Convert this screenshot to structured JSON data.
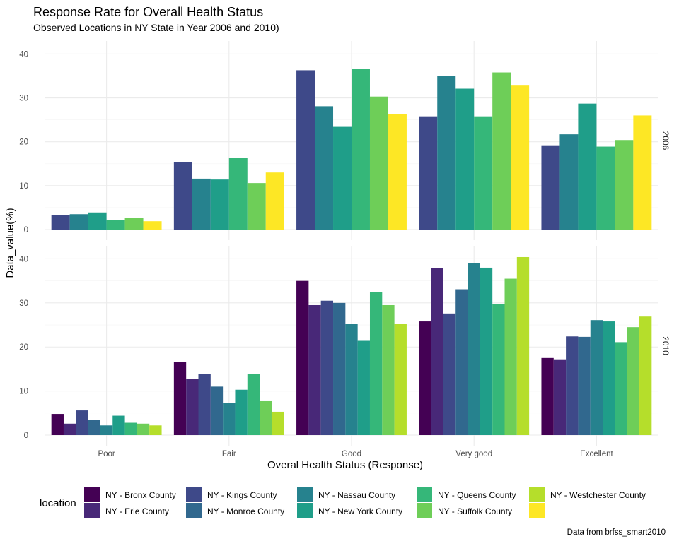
{
  "chart_data": {
    "type": "bar",
    "title": "Response Rate for Overall Health Status",
    "subtitle": "Observed Locations in NY State in Year 2006 and 2010)",
    "xlabel": "Overal Health Status (Response)",
    "ylabel": "Data_value(%)",
    "caption": "Data from brfss_smart2010",
    "categories": [
      "Poor",
      "Fair",
      "Good",
      "Very good",
      "Excellent"
    ],
    "ylim": [
      0,
      42
    ],
    "yticks": [
      0,
      10,
      20,
      30,
      40
    ],
    "grid": true,
    "legend": {
      "title": "location",
      "position": "bottom",
      "entries": [
        {
          "name": "NY - Bronx County",
          "color": "#440154"
        },
        {
          "name": "NY - Erie County",
          "color": "#482878"
        },
        {
          "name": "NY - Kings County",
          "color": "#3e4989"
        },
        {
          "name": "NY - Monroe County",
          "color": "#31688e"
        },
        {
          "name": "NY - Nassau County",
          "color": "#26828e"
        },
        {
          "name": "NY - New York County",
          "color": "#1f9e89"
        },
        {
          "name": "NY - Queens County",
          "color": "#35b779"
        },
        {
          "name": "NY - Suffolk County",
          "color": "#6ece58"
        },
        {
          "name": "NY - Westchester County",
          "color": "#b5de2b"
        },
        {
          "name": "",
          "color": "#fde725"
        }
      ]
    },
    "panels": [
      {
        "label": "2006",
        "series": [
          {
            "name": "NY - Kings County",
            "color": "#3e4989",
            "values": [
              3.3,
              15.3,
              36.3,
              25.8,
              19.2
            ]
          },
          {
            "name": "NY - Nassau County",
            "color": "#26828e",
            "values": [
              3.5,
              11.6,
              28.1,
              35.0,
              21.7
            ]
          },
          {
            "name": "NY - New York County",
            "color": "#1f9e89",
            "values": [
              3.9,
              11.4,
              23.4,
              32.1,
              28.7
            ]
          },
          {
            "name": "NY - Queens County",
            "color": "#35b779",
            "values": [
              2.2,
              16.3,
              36.6,
              25.8,
              18.9
            ]
          },
          {
            "name": "NY - Suffolk County",
            "color": "#6ece58",
            "values": [
              2.7,
              10.6,
              30.3,
              35.8,
              20.4
            ]
          },
          {
            "name": "NY - Westchester County",
            "color": "#fde725",
            "values": [
              1.9,
              13.0,
              26.3,
              32.8,
              26.0
            ]
          }
        ]
      },
      {
        "label": "2010",
        "series": [
          {
            "name": "NY - Bronx County",
            "color": "#440154",
            "values": [
              4.8,
              16.6,
              35.0,
              25.8,
              17.5
            ]
          },
          {
            "name": "NY - Erie County",
            "color": "#482878",
            "values": [
              2.6,
              12.7,
              29.5,
              37.9,
              17.2
            ]
          },
          {
            "name": "NY - Kings County",
            "color": "#3e4989",
            "values": [
              5.6,
              13.8,
              30.5,
              27.6,
              22.4
            ]
          },
          {
            "name": "NY - Monroe County",
            "color": "#31688e",
            "values": [
              3.4,
              11.0,
              30.0,
              33.1,
              22.3
            ]
          },
          {
            "name": "NY - Nassau County",
            "color": "#26828e",
            "values": [
              2.2,
              7.3,
              25.3,
              39.0,
              26.1
            ]
          },
          {
            "name": "NY - New York County",
            "color": "#1f9e89",
            "values": [
              4.4,
              10.3,
              21.4,
              38.0,
              25.8
            ]
          },
          {
            "name": "NY - Queens County",
            "color": "#35b779",
            "values": [
              2.8,
              13.9,
              32.4,
              29.7,
              21.1
            ]
          },
          {
            "name": "NY - Suffolk County",
            "color": "#6ece58",
            "values": [
              2.6,
              7.7,
              29.5,
              35.5,
              24.5
            ]
          },
          {
            "name": "NY - Westchester County",
            "color": "#b5de2b",
            "values": [
              2.2,
              5.3,
              25.2,
              40.4,
              26.9
            ]
          }
        ]
      }
    ]
  }
}
